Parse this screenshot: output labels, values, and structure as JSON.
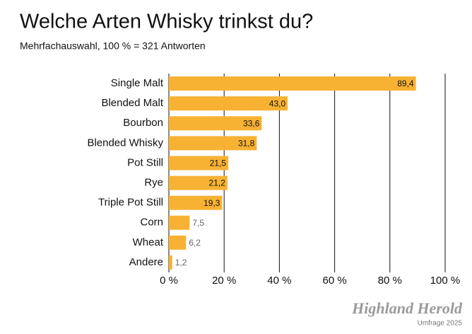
{
  "chart_data": {
    "type": "hbar",
    "title": "Welche Arten Whisky trinkst du?",
    "subtitle": "Mehrfachauswahl, 100 % = 321 Antworten",
    "categories": [
      "Single Malt",
      "Blended Malt",
      "Bourbon",
      "Blended Whisky",
      "Pot Still",
      "Rye",
      "Triple Pot Still",
      "Corn",
      "Wheat",
      "Andere"
    ],
    "values": [
      89.4,
      43.0,
      33.6,
      31.8,
      21.5,
      21.2,
      19.3,
      7.5,
      6.2,
      1.2
    ],
    "value_labels": [
      "89,4",
      "43,0",
      "33,6",
      "31,8",
      "21,5",
      "21,2",
      "19,3",
      "7,5",
      "6,2",
      "1,2"
    ],
    "color": "#f7b233",
    "xlim": [
      0,
      100
    ],
    "xticks": [
      {
        "value": 0,
        "label": "0 %"
      },
      {
        "value": 20,
        "label": "20 %"
      },
      {
        "value": 40,
        "label": "40 %"
      },
      {
        "value": 60,
        "label": "60 %"
      },
      {
        "value": 80,
        "label": "80 %"
      },
      {
        "value": 100,
        "label": "100 %"
      }
    ],
    "grid": true,
    "source": "Highland Herold",
    "note": "Umfrage 2025"
  }
}
